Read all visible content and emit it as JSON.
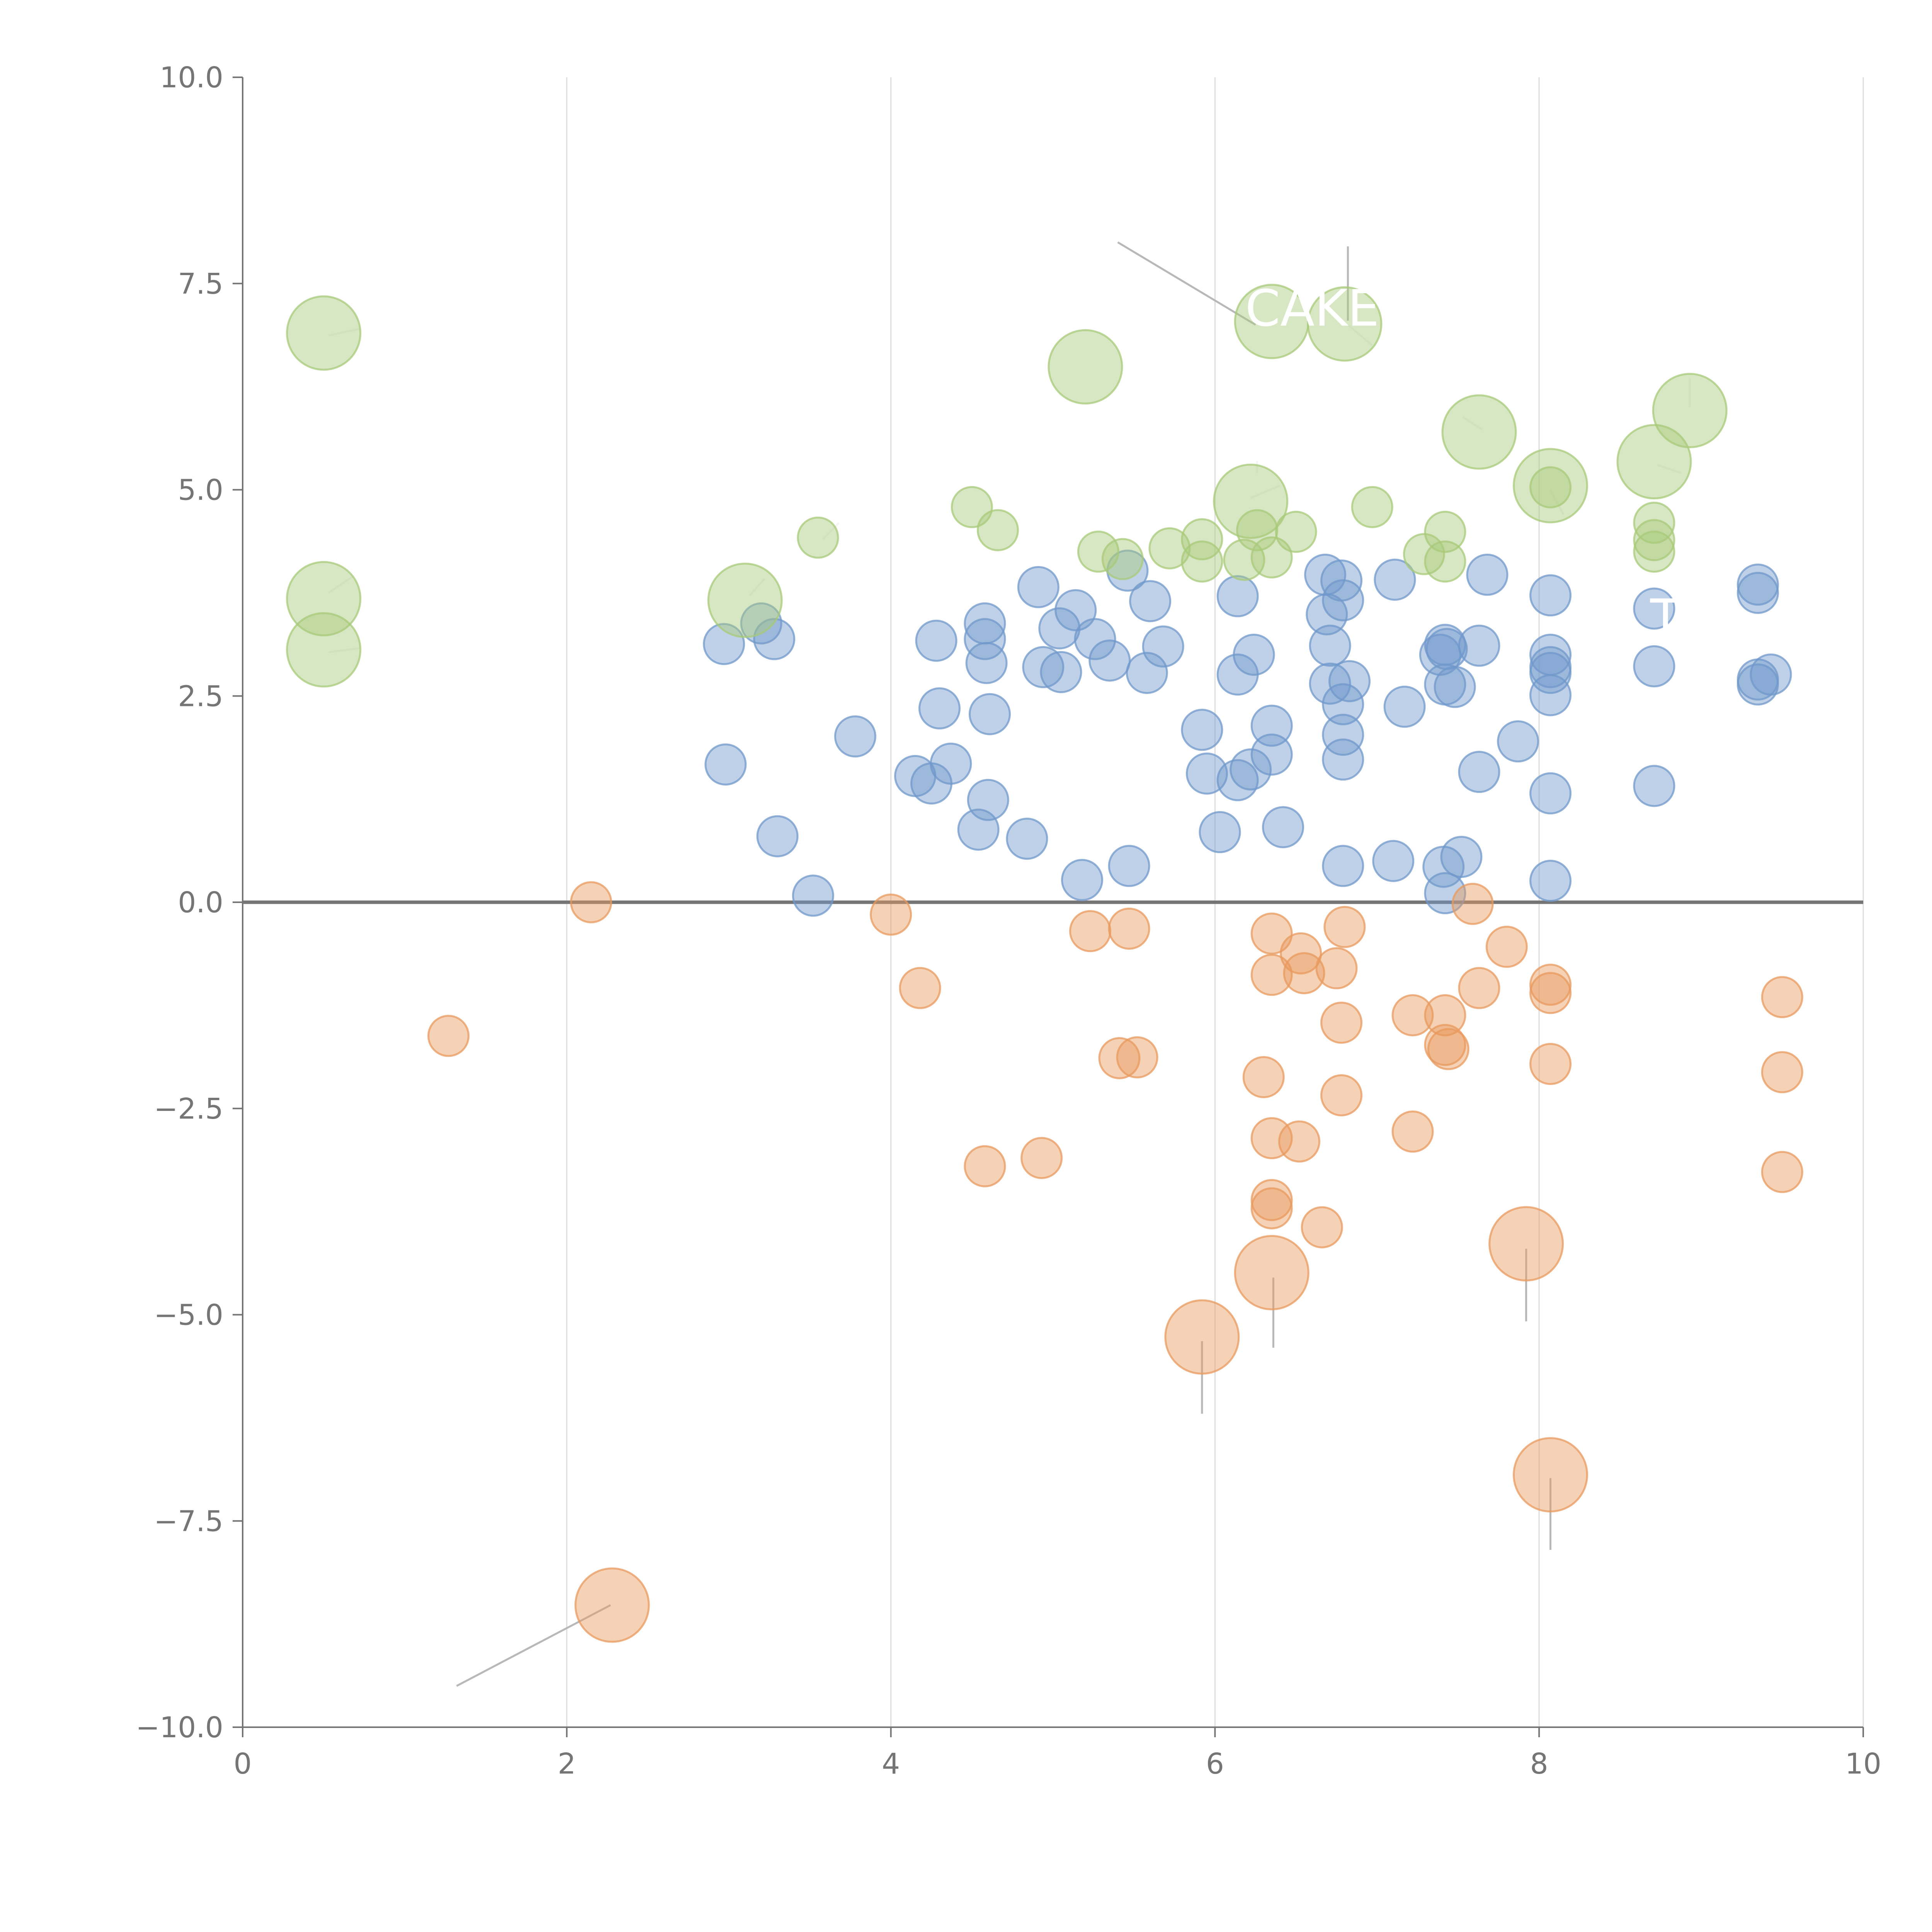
{
  "chart_data": {
    "type": "scatter",
    "title": "",
    "xlabel": "",
    "ylabel": "",
    "xlim": [
      0,
      10
    ],
    "ylim": [
      -10,
      10
    ],
    "x_ticks": [
      0,
      2,
      4,
      6,
      8,
      10
    ],
    "y_ticks": [
      -10,
      -7.5,
      -5,
      -2.5,
      0,
      2.5,
      5,
      7.5,
      10
    ],
    "x_tick_labels": [
      "0",
      "2",
      "4",
      "6",
      "8",
      "10"
    ],
    "y_tick_labels": [
      "−10.0",
      "−7.5",
      "−5.0",
      "−2.5",
      "0.0",
      "2.5",
      "5.0",
      "7.5",
      "10.0"
    ],
    "grid": "vertical lines at x ticks",
    "reference_line": {
      "axis": "y",
      "value": 0
    },
    "size_unit": "relative bubble radius (1 = small)",
    "colors": {
      "blue": "#7098cb",
      "orange": "#e89a5e",
      "green": "#a8c97a",
      "grid": "#dddddd",
      "axis": "#757575",
      "leader_dark": "#b8b8b8",
      "leader_light": "#f5f5f5"
    },
    "series": [
      {
        "name": "blue",
        "color": "#7098cb",
        "points": [
          [
            2.97,
            3.13,
            1
          ],
          [
            2.98,
            1.67,
            1
          ],
          [
            3.2,
            3.38,
            1
          ],
          [
            3.28,
            3.19,
            1
          ],
          [
            3.3,
            0.8,
            1
          ],
          [
            3.52,
            0.08,
            1
          ],
          [
            3.78,
            2.01,
            1
          ],
          [
            4.15,
            1.53,
            1
          ],
          [
            4.25,
            1.44,
            1
          ],
          [
            4.28,
            3.17,
            1
          ],
          [
            4.3,
            2.35,
            1
          ],
          [
            4.37,
            1.68,
            1
          ],
          [
            4.54,
            0.88,
            1
          ],
          [
            4.58,
            3.38,
            1
          ],
          [
            4.58,
            3.19,
            1
          ],
          [
            4.59,
            2.9,
            1
          ],
          [
            4.6,
            1.24,
            1
          ],
          [
            4.61,
            2.28,
            1
          ],
          [
            4.84,
            0.77,
            1
          ],
          [
            4.91,
            3.82,
            1
          ],
          [
            4.94,
            2.85,
            1
          ],
          [
            5.04,
            3.32,
            1
          ],
          [
            5.05,
            2.79,
            1
          ],
          [
            5.14,
            3.54,
            1
          ],
          [
            5.18,
            0.27,
            1
          ],
          [
            5.26,
            3.19,
            1
          ],
          [
            5.35,
            2.93,
            1
          ],
          [
            5.46,
            4.02,
            1
          ],
          [
            5.47,
            0.44,
            1
          ],
          [
            5.58,
            2.78,
            1
          ],
          [
            5.6,
            3.65,
            1
          ],
          [
            5.68,
            3.1,
            1
          ],
          [
            5.92,
            2.09,
            1
          ],
          [
            5.95,
            1.56,
            1
          ],
          [
            6.03,
            0.85,
            1
          ],
          [
            6.14,
            3.71,
            1
          ],
          [
            6.14,
            2.76,
            1
          ],
          [
            6.14,
            1.48,
            1
          ],
          [
            6.22,
            1.61,
            1
          ],
          [
            6.24,
            3.0,
            1
          ],
          [
            6.35,
            2.14,
            1
          ],
          [
            6.35,
            1.79,
            1
          ],
          [
            6.42,
            0.91,
            1
          ],
          [
            6.68,
            3.97,
            1
          ],
          [
            6.69,
            3.49,
            1
          ],
          [
            6.71,
            3.11,
            1
          ],
          [
            6.71,
            2.65,
            1
          ],
          [
            6.78,
            3.9,
            1
          ],
          [
            6.79,
            3.66,
            1
          ],
          [
            6.79,
            2.4,
            1
          ],
          [
            6.79,
            2.03,
            1
          ],
          [
            6.79,
            1.73,
            1
          ],
          [
            6.79,
            0.44,
            1
          ],
          [
            6.83,
            2.68,
            1
          ],
          [
            7.11,
            3.91,
            1
          ],
          [
            7.1,
            0.5,
            1
          ],
          [
            7.17,
            2.37,
            1
          ],
          [
            7.39,
            3.0,
            1
          ],
          [
            7.42,
            3.12,
            1
          ],
          [
            7.43,
            3.07,
            1
          ],
          [
            7.42,
            2.64,
            1
          ],
          [
            7.48,
            2.61,
            1
          ],
          [
            7.41,
            0.43,
            1
          ],
          [
            7.42,
            0.11,
            1
          ],
          [
            7.52,
            0.55,
            1
          ],
          [
            7.63,
            3.11,
            1
          ],
          [
            7.63,
            1.58,
            1
          ],
          [
            7.68,
            3.97,
            1
          ],
          [
            7.87,
            1.95,
            1
          ],
          [
            8.07,
            3.72,
            1
          ],
          [
            8.07,
            3.0,
            1
          ],
          [
            8.07,
            2.85,
            1
          ],
          [
            8.07,
            2.78,
            1
          ],
          [
            8.07,
            2.51,
            1
          ],
          [
            8.07,
            1.32,
            1
          ],
          [
            8.07,
            0.26,
            1
          ],
          [
            8.71,
            3.56,
            1
          ],
          [
            8.71,
            2.86,
            1
          ],
          [
            8.71,
            1.41,
            1
          ],
          [
            9.35,
            3.85,
            1
          ],
          [
            9.35,
            3.75,
            1
          ],
          [
            9.35,
            2.7,
            1
          ],
          [
            9.35,
            2.64,
            1
          ],
          [
            9.43,
            2.76,
            1
          ]
        ]
      },
      {
        "name": "orange",
        "color": "#e89a5e",
        "points": [
          [
            1.27,
            -1.62,
            1
          ],
          [
            2.15,
            0.0,
            1
          ],
          [
            2.28,
            -8.52,
            2
          ],
          [
            4.0,
            -0.15,
            1
          ],
          [
            4.18,
            -1.04,
            1
          ],
          [
            4.58,
            -3.2,
            1
          ],
          [
            4.93,
            -3.1,
            1
          ],
          [
            5.23,
            -0.35,
            1
          ],
          [
            5.41,
            -1.89,
            1
          ],
          [
            5.47,
            -0.32,
            1
          ],
          [
            5.52,
            -1.88,
            1
          ],
          [
            5.92,
            -5.27,
            2
          ],
          [
            6.3,
            -2.12,
            1
          ],
          [
            6.35,
            -0.38,
            1
          ],
          [
            6.35,
            -0.88,
            1
          ],
          [
            6.35,
            -2.86,
            1
          ],
          [
            6.35,
            -3.61,
            1
          ],
          [
            6.35,
            -3.71,
            1
          ],
          [
            6.35,
            -4.49,
            2
          ],
          [
            6.53,
            -0.62,
            1
          ],
          [
            6.55,
            -0.86,
            1
          ],
          [
            6.52,
            -2.9,
            1
          ],
          [
            6.66,
            -3.94,
            1
          ],
          [
            6.75,
            -0.8,
            1
          ],
          [
            6.78,
            -1.46,
            1
          ],
          [
            6.78,
            -2.34,
            1
          ],
          [
            6.8,
            -0.3,
            1
          ],
          [
            7.22,
            -1.37,
            1
          ],
          [
            7.22,
            -2.78,
            1
          ],
          [
            7.42,
            -1.37,
            1
          ],
          [
            7.42,
            -1.73,
            1
          ],
          [
            7.44,
            -1.78,
            1
          ],
          [
            7.59,
            -0.02,
            1
          ],
          [
            7.63,
            -1.04,
            1
          ],
          [
            7.8,
            -0.54,
            1
          ],
          [
            7.92,
            -4.14,
            2
          ],
          [
            8.07,
            -1.0,
            1
          ],
          [
            8.07,
            -1.1,
            1
          ],
          [
            8.07,
            -1.96,
            1
          ],
          [
            8.07,
            -6.94,
            2
          ],
          [
            9.5,
            -1.15,
            1
          ],
          [
            9.5,
            -2.06,
            1
          ],
          [
            9.5,
            -3.27,
            1
          ]
        ]
      },
      {
        "name": "green",
        "color": "#a8c97a",
        "points": [
          [
            0.5,
            6.9,
            2
          ],
          [
            0.5,
            3.68,
            2
          ],
          [
            0.5,
            3.06,
            2
          ],
          [
            3.1,
            3.66,
            2
          ],
          [
            3.55,
            4.42,
            1
          ],
          [
            4.5,
            4.79,
            1
          ],
          [
            4.66,
            4.51,
            1
          ],
          [
            5.2,
            6.49,
            2
          ],
          [
            5.28,
            4.25,
            1
          ],
          [
            5.43,
            4.16,
            1
          ],
          [
            5.72,
            4.29,
            1
          ],
          [
            5.92,
            4.4,
            1
          ],
          [
            5.92,
            4.13,
            1
          ],
          [
            6.22,
            4.86,
            2
          ],
          [
            6.18,
            4.15,
            1
          ],
          [
            6.26,
            4.51,
            1
          ],
          [
            6.35,
            4.18,
            1
          ],
          [
            6.35,
            7.04,
            2
          ],
          [
            6.5,
            4.49,
            1
          ],
          [
            6.8,
            7.01,
            2
          ],
          [
            6.97,
            4.79,
            1
          ],
          [
            7.29,
            4.22,
            1
          ],
          [
            7.42,
            4.49,
            1
          ],
          [
            7.42,
            4.13,
            1
          ],
          [
            7.63,
            5.7,
            2
          ],
          [
            8.07,
            5.05,
            2
          ],
          [
            8.07,
            5.03,
            1
          ],
          [
            8.71,
            5.34,
            2
          ],
          [
            8.71,
            4.6,
            1
          ],
          [
            8.71,
            4.39,
            1
          ],
          [
            8.71,
            4.25,
            1
          ],
          [
            8.93,
            5.96,
            2
          ]
        ]
      }
    ],
    "annotations": [
      {
        "text": "CAKE",
        "x": 6.6,
        "y": 7.2
      },
      {
        "text": "T",
        "x": 8.78,
        "y": 3.45
      }
    ],
    "leaders": [
      {
        "from": [
          5.4,
          8.0
        ],
        "to": [
          6.25,
          7.0
        ],
        "color": "leader_dark"
      },
      {
        "from": [
          6.82,
          7.95
        ],
        "to": [
          6.82,
          7.05
        ],
        "color": "leader_dark"
      },
      {
        "from": [
          6.82,
          7.0
        ],
        "to": [
          6.97,
          6.75
        ],
        "color": "leader_light"
      },
      {
        "from": [
          0.53,
          6.87
        ],
        "to": [
          0.72,
          6.95
        ],
        "color": "leader_light"
      },
      {
        "from": [
          0.53,
          3.75
        ],
        "to": [
          0.68,
          3.95
        ],
        "color": "leader_light"
      },
      {
        "from": [
          0.53,
          3.03
        ],
        "to": [
          0.72,
          3.08
        ],
        "color": "leader_light"
      },
      {
        "from": [
          3.13,
          3.72
        ],
        "to": [
          3.22,
          3.92
        ],
        "color": "leader_light"
      },
      {
        "from": [
          3.58,
          4.4
        ],
        "to": [
          3.68,
          4.6
        ],
        "color": "leader_light"
      },
      {
        "from": [
          6.22,
          4.9
        ],
        "to": [
          6.4,
          5.05
        ],
        "color": "leader_light"
      },
      {
        "from": [
          6.26,
          5.2
        ],
        "to": [
          6.26,
          5.35
        ],
        "color": "leader_light"
      },
      {
        "from": [
          7.65,
          5.73
        ],
        "to": [
          7.53,
          5.88
        ],
        "color": "leader_light"
      },
      {
        "from": [
          8.07,
          5.0
        ],
        "to": [
          8.15,
          4.7
        ],
        "color": "leader_light"
      },
      {
        "from": [
          8.73,
          5.3
        ],
        "to": [
          8.88,
          5.2
        ],
        "color": "leader_light"
      },
      {
        "from": [
          8.93,
          6.0
        ],
        "to": [
          8.93,
          6.35
        ],
        "color": "leader_light"
      },
      {
        "from": [
          2.27,
          -8.52
        ],
        "to": [
          1.32,
          -9.5
        ],
        "color": "leader_dark"
      },
      {
        "from": [
          5.92,
          -5.32
        ],
        "to": [
          5.92,
          -6.2
        ],
        "color": "leader_dark"
      },
      {
        "from": [
          6.36,
          -4.55
        ],
        "to": [
          6.36,
          -5.4
        ],
        "color": "leader_dark"
      },
      {
        "from": [
          7.92,
          -4.2
        ],
        "to": [
          7.92,
          -5.08
        ],
        "color": "leader_dark"
      },
      {
        "from": [
          8.07,
          -6.98
        ],
        "to": [
          8.07,
          -7.85
        ],
        "color": "leader_dark"
      }
    ]
  }
}
